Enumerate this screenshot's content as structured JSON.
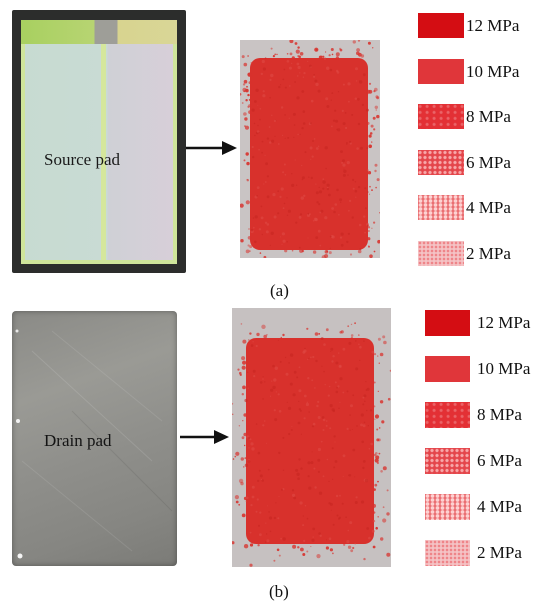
{
  "part_a": {
    "pad_label": "Source pad",
    "caption": "(a)",
    "legend": [
      {
        "label": "12 MPa",
        "pressure_mpa": 12
      },
      {
        "label": "10 MPa",
        "pressure_mpa": 10
      },
      {
        "label": "8 MPa",
        "pressure_mpa": 8
      },
      {
        "label": "6 MPa",
        "pressure_mpa": 6
      },
      {
        "label": "4 MPa",
        "pressure_mpa": 4
      },
      {
        "label": "2 MPa",
        "pressure_mpa": 2
      }
    ]
  },
  "part_b": {
    "pad_label": "Drain pad",
    "caption": "(b)",
    "legend": [
      {
        "label": "12 MPa",
        "pressure_mpa": 12
      },
      {
        "label": "10 MPa",
        "pressure_mpa": 10
      },
      {
        "label": "8 MPa",
        "pressure_mpa": 8
      },
      {
        "label": "6 MPa",
        "pressure_mpa": 6
      },
      {
        "label": "4 MPa",
        "pressure_mpa": 4
      },
      {
        "label": "2 MPa",
        "pressure_mpa": 2
      }
    ]
  },
  "colors": {
    "imprint_red": "#d8312c",
    "arrow": "#111111",
    "legend_12": "#d40d13",
    "legend_10": "#e0363a",
    "legend_8": "#e33035",
    "legend_6": "#e4464b",
    "legend_4": "#ea6d70",
    "legend_2": "#f4c3c5"
  },
  "icons": {
    "arrow_a": "right-arrow-icon",
    "arrow_b": "right-arrow-icon"
  }
}
